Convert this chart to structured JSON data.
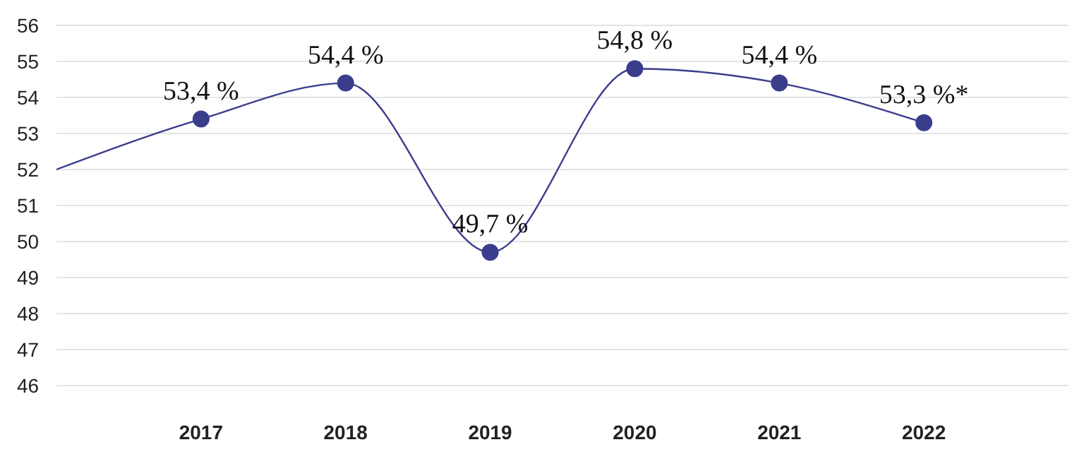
{
  "chart_data": {
    "type": "line",
    "categories": [
      null,
      "2017",
      "2018",
      "2019",
      "2020",
      "2021",
      "2022",
      null
    ],
    "series": [
      {
        "color": "#3a3d8c",
        "values": [
          52.0,
          53.4,
          54.4,
          49.7,
          54.8,
          54.4,
          53.3,
          null
        ],
        "value_labels": [
          null,
          "53,4 %",
          "54,4 %",
          "49,7 %",
          "54,8 %",
          "54,4 %",
          "53,3 %*",
          null
        ]
      }
    ],
    "ylim": [
      46,
      56
    ],
    "yticks": [
      46,
      47,
      48,
      49,
      50,
      51,
      52,
      53,
      54,
      55,
      56
    ],
    "grid": "y",
    "marker": "circle",
    "line_style": "solid"
  }
}
